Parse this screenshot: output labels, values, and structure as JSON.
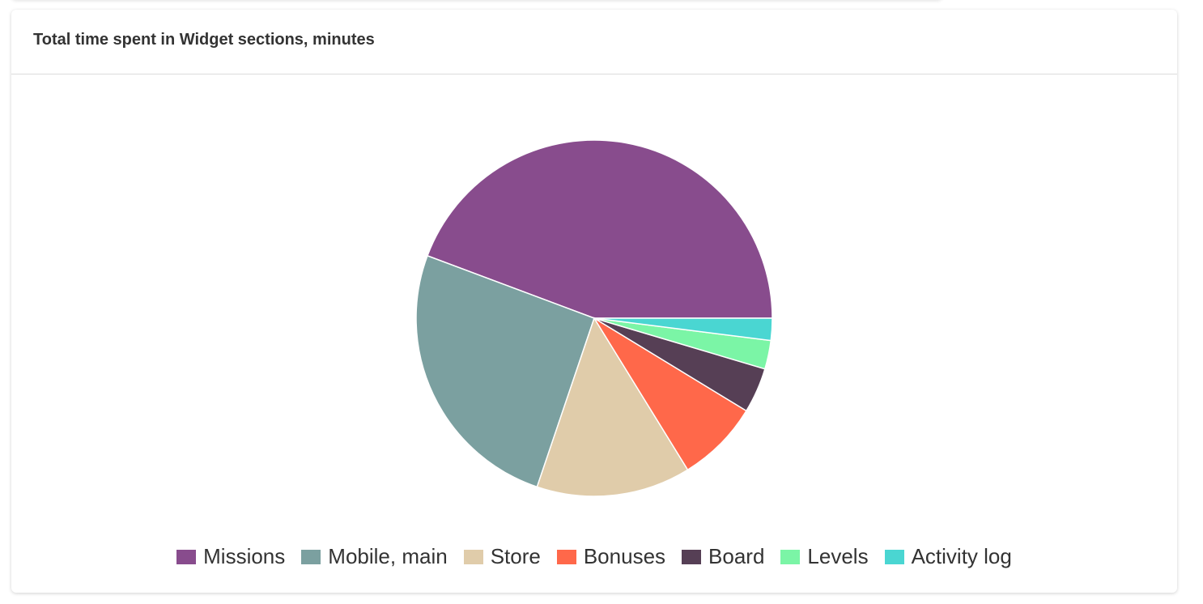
{
  "chart_data": {
    "type": "pie",
    "title": "Total time spent in Widget sections, minutes",
    "categories": [
      "Missions",
      "Mobile, main",
      "Store",
      "Bonuses",
      "Board",
      "Levels",
      "Activity log"
    ],
    "values": [
      44.3,
      25.5,
      14.0,
      7.5,
      4.1,
      2.6,
      2.0
    ],
    "colors": [
      "#884C8D",
      "#7BA0A0",
      "#E0CCAA",
      "#FF684A",
      "#563F55",
      "#7BF5A6",
      "#4AD6D2"
    ],
    "legend": "bottom"
  }
}
